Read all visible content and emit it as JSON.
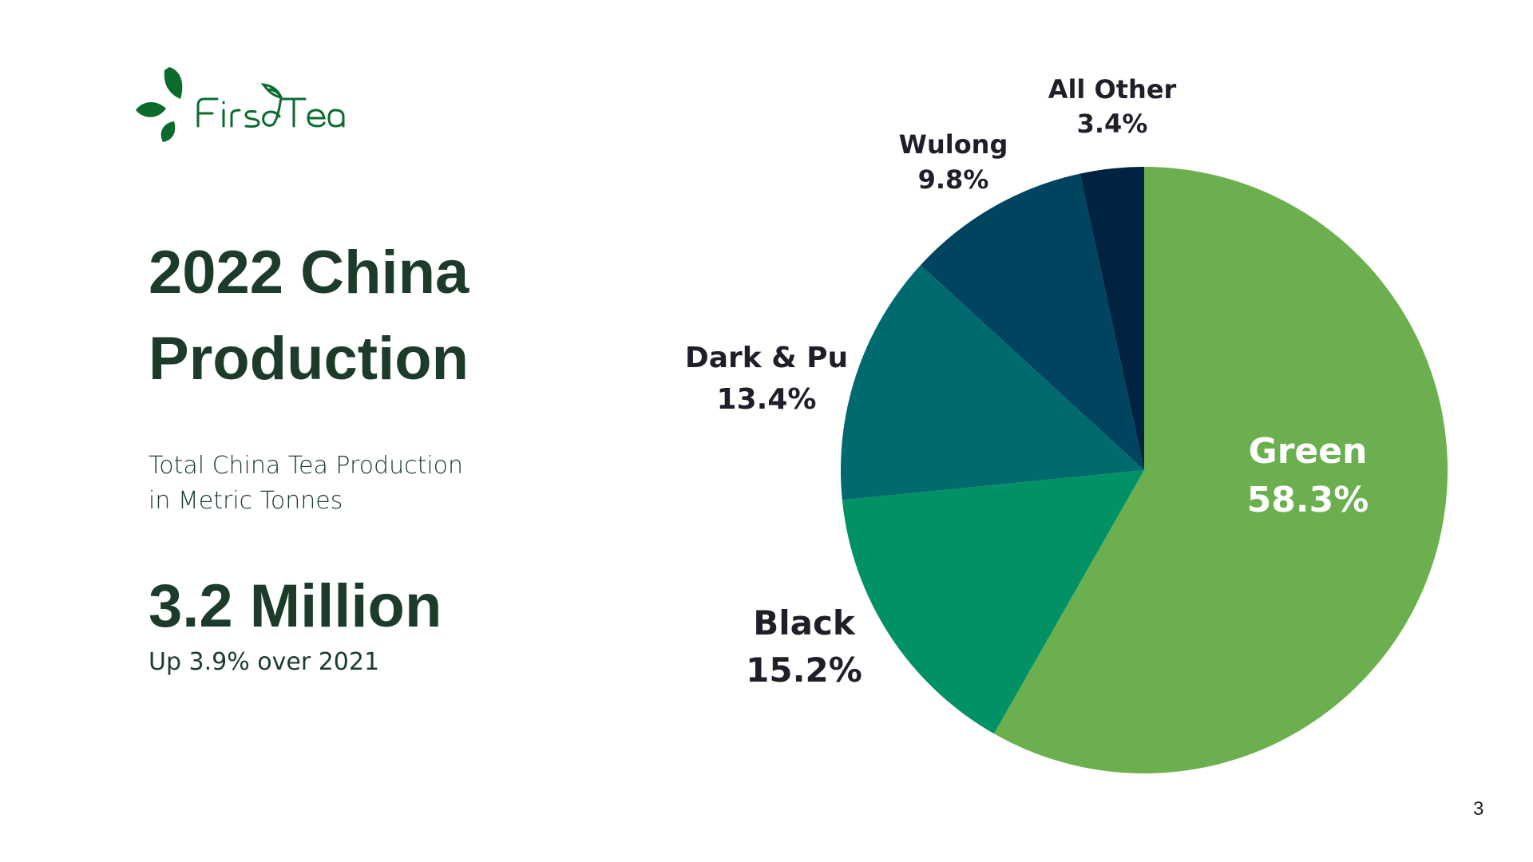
{
  "logo": {
    "text": "FirsdTea",
    "color": "#0b6b2f"
  },
  "title": {
    "line1": "2022 China",
    "line2": "Production"
  },
  "subtitle": {
    "line1": "Total China Tea Production",
    "line2": "in Metric Tonnes"
  },
  "headline_value": "3.2 Million",
  "headline_change": "Up 3.9% over 2021",
  "page_number": "3",
  "chart_data": {
    "type": "pie",
    "start": "top, clockwise",
    "slices": [
      {
        "label": "Green",
        "value": 58.3,
        "display": "58.3%",
        "color": "#6caf4f",
        "label_color": "#ffffff"
      },
      {
        "label": "Black",
        "value": 15.2,
        "display": "15.2%",
        "color": "#029165",
        "label_color": "#1f1f2a"
      },
      {
        "label": "Dark & Pu",
        "value": 13.4,
        "display": "13.4%",
        "color": "#016a6e",
        "label_color": "#1f1f2a"
      },
      {
        "label": "Wulong",
        "value": 9.8,
        "display": "9.8%",
        "color": "#00445f",
        "label_color": "#1f1f2a"
      },
      {
        "label": "All Other",
        "value": 3.4,
        "display": "3.4%",
        "color": "#002342",
        "label_color": "#1f1f2a"
      }
    ]
  }
}
